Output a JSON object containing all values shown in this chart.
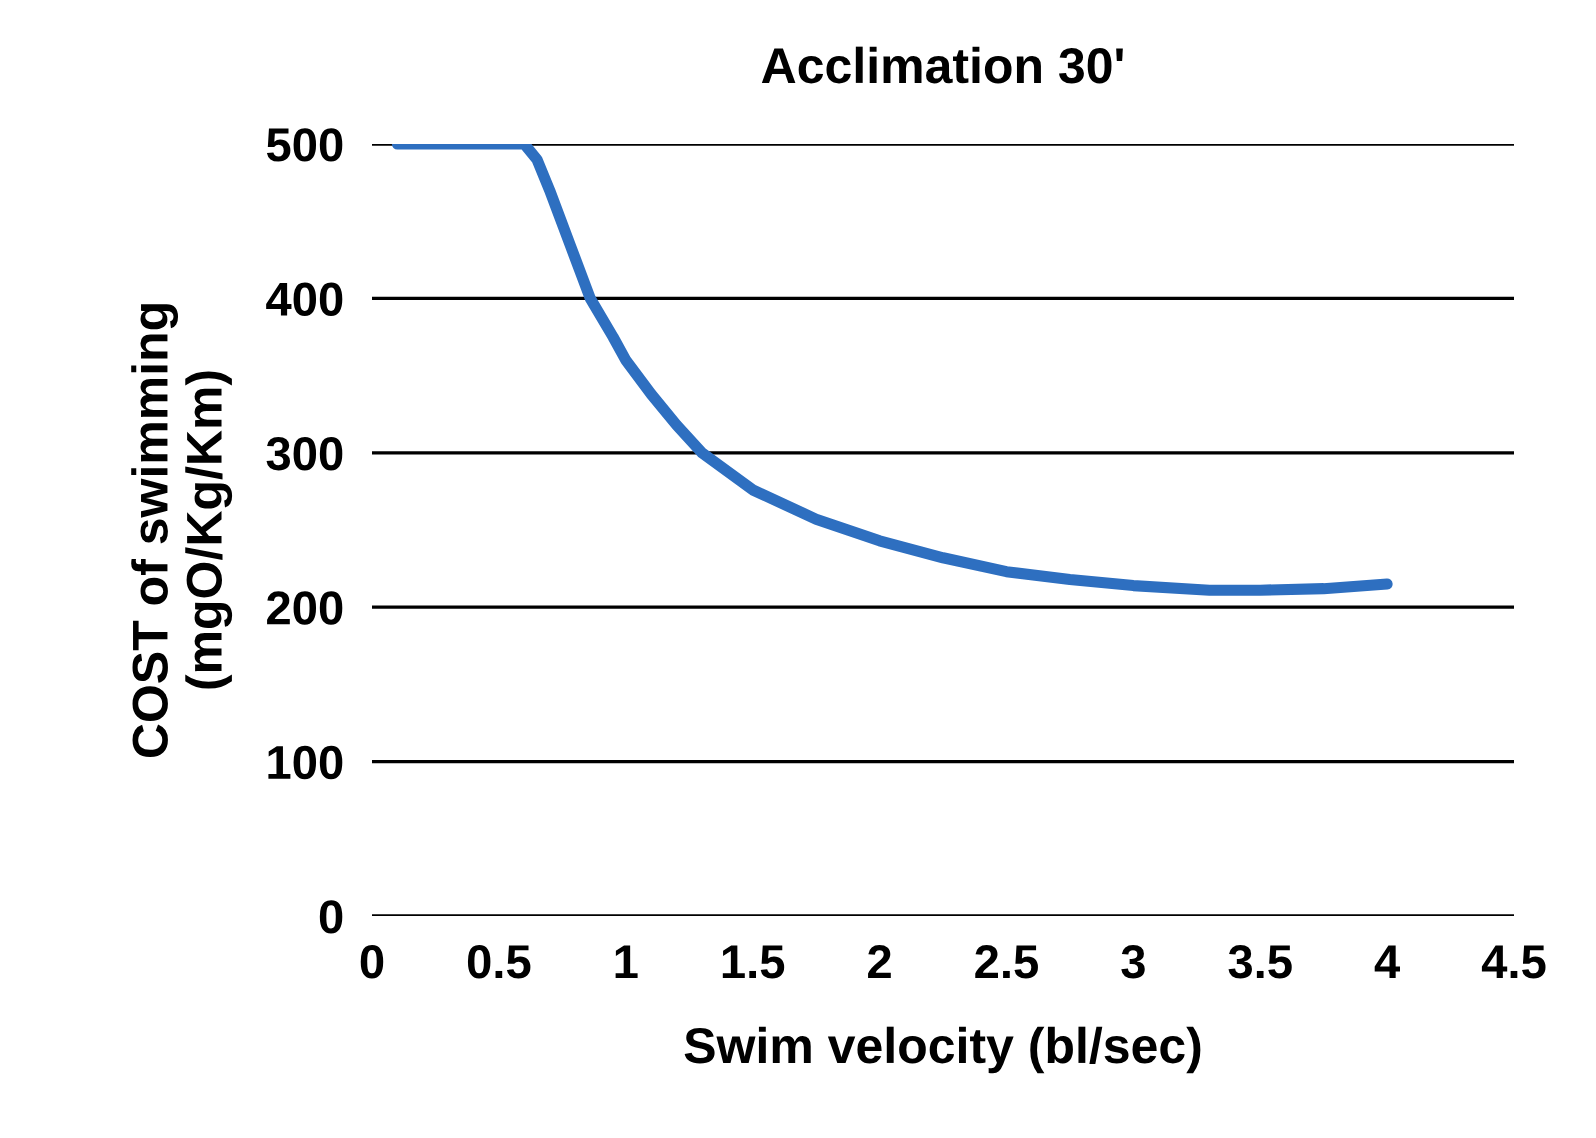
{
  "chart_data": {
    "type": "line",
    "title": "Acclimation 30'",
    "xlabel": "Swim velocity (bl/sec)",
    "ylabel": "COST of swimming\n(mgO/Kg/Km)",
    "x": [
      0.1,
      0.3,
      0.6,
      0.65,
      0.7,
      0.78,
      0.86,
      0.95,
      1.0,
      1.1,
      1.2,
      1.3,
      1.5,
      1.75,
      2.0,
      2.25,
      2.5,
      2.75,
      3.0,
      3.3,
      3.5,
      3.75,
      4.0
    ],
    "series": [
      {
        "color": "#2e6fc0",
        "values": [
          500,
          500,
          500,
          490,
          470,
          435,
          400,
          375,
          360,
          338,
          318,
          300,
          276,
          257,
          243,
          232,
          223,
          218,
          214,
          211,
          211,
          212,
          215
        ]
      }
    ],
    "xlim": [
      0,
      4.5
    ],
    "xticks": [
      0,
      {
        "value": 0.5,
        "label": "0.5"
      },
      1,
      {
        "value": 1.5,
        "label": "1.5"
      },
      2,
      {
        "value": 2.5,
        "label": "2.5"
      },
      3,
      {
        "value": 3.5,
        "label": "3.5"
      },
      4,
      {
        "value": 4.5,
        "label": "4.5"
      }
    ],
    "ylim": [
      0,
      500
    ],
    "yticks": [
      0,
      100,
      200,
      300,
      400,
      500
    ],
    "grid": "y",
    "marker": "none",
    "line_style": "solid",
    "legend": false
  }
}
